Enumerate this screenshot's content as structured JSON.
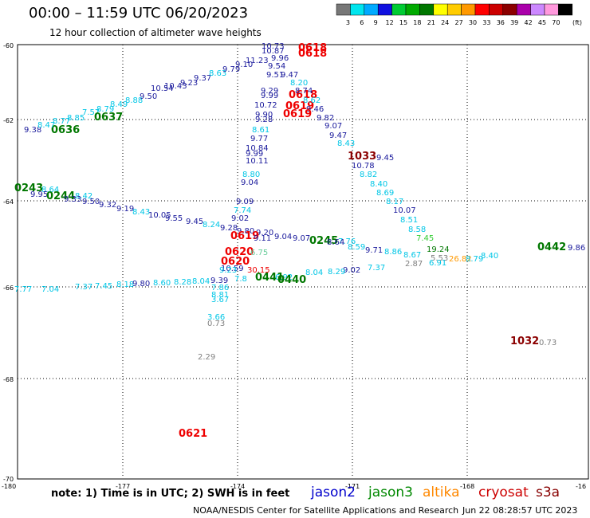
{
  "title": "00:00 – 11:59 UTC 06/20/2023",
  "subtitle": "12 hour collection of altimeter wave heights",
  "legend": {
    "labels": [
      "3",
      "6",
      "9",
      "12",
      "15",
      "18",
      "21",
      "24",
      "27",
      "30",
      "33",
      "36",
      "39",
      "42",
      "45",
      "70"
    ],
    "unit": "(ft)",
    "colors": [
      "#777777",
      "#00e5ee",
      "#00aaff",
      "#1010e0",
      "#00cc33",
      "#00aa00",
      "#007700",
      "#ffff00",
      "#ffcc00",
      "#ff9900",
      "#ff0000",
      "#cc0000",
      "#8b0000",
      "#aa00aa",
      "#cc88ff",
      "#ff99dd",
      "#000000"
    ]
  },
  "axes": {
    "lat_labels": [
      "-60",
      "-62",
      "-64",
      "-66",
      "-68",
      "-70"
    ],
    "lon_labels": [
      "-180",
      "-177",
      "-174",
      "-171",
      "-168",
      "-16"
    ]
  },
  "note": "note: 1) Time is in UTC; 2) SWH is in feet",
  "satellites": [
    {
      "name": "jason2",
      "color": "#0000cc"
    },
    {
      "name": "jason3",
      "color": "#008800"
    },
    {
      "name": "altika",
      "color": "#ff8800"
    },
    {
      "name": "cryosat",
      "color": "#cc0000"
    },
    {
      "name": "s3a",
      "color": "#880000"
    }
  ],
  "footer": "NOAA/NESDIS Center for Satellite Applications and Research",
  "footer_time": "Jun 22 08:28:57 UTC 2023",
  "colors": {
    "navy": "#1a1a9c",
    "cyan": "#00c6e6",
    "green": "#007700",
    "red": "#ee0000",
    "darkred": "#8b0000",
    "gray": "#808080",
    "orange": "#ff9900",
    "lgreen": "#33cc33",
    "teal": "#66cc99"
  },
  "labels": [
    {
      "t": "9.38",
      "c": "navy"
    },
    {
      "t": "0636",
      "c": "green",
      "b": 1
    },
    {
      "t": "8.47",
      "c": "cyan"
    },
    {
      "t": "8.77",
      "c": "cyan"
    },
    {
      "t": "8.85",
      "c": "cyan"
    },
    {
      "t": "7.57",
      "c": "cyan"
    },
    {
      "t": "0637",
      "c": "green",
      "b": 1
    },
    {
      "t": "8.79",
      "c": "cyan"
    },
    {
      "t": "8.49",
      "c": "cyan"
    },
    {
      "t": "8.88",
      "c": "cyan"
    },
    {
      "t": "9.50",
      "c": "navy"
    },
    {
      "t": "10.54",
      "c": "navy"
    },
    {
      "t": "10.43",
      "c": "navy"
    },
    {
      "t": "9.23",
      "c": "navy"
    },
    {
      "t": "9.37",
      "c": "navy"
    },
    {
      "t": "8.63",
      "c": "cyan"
    },
    {
      "t": "9.79",
      "c": "navy"
    },
    {
      "t": "9.10",
      "c": "navy"
    },
    {
      "t": "11.23",
      "c": "navy"
    },
    {
      "t": "10.73",
      "c": "navy"
    },
    {
      "t": "10.87",
      "c": "navy"
    },
    {
      "t": "0618",
      "c": "red",
      "b": 1
    },
    {
      "t": "0618",
      "c": "red",
      "b": 1
    },
    {
      "t": "9.96",
      "c": "navy"
    },
    {
      "t": "9.54",
      "c": "navy"
    },
    {
      "t": "9.51",
      "c": "navy"
    },
    {
      "t": "9.47",
      "c": "navy"
    },
    {
      "t": "8.20",
      "c": "cyan"
    },
    {
      "t": "9.29",
      "c": "navy"
    },
    {
      "t": "9.99",
      "c": "navy"
    },
    {
      "t": "0618",
      "c": "red",
      "b": 1
    },
    {
      "t": "8.74",
      "c": "navy"
    },
    {
      "t": "10.72",
      "c": "navy"
    },
    {
      "t": "0619",
      "c": "red",
      "b": 1
    },
    {
      "t": "8.62",
      "c": "cyan"
    },
    {
      "t": "9.46",
      "c": "navy"
    },
    {
      "t": "9.90",
      "c": "navy"
    },
    {
      "t": "0619",
      "c": "red",
      "b": 1
    },
    {
      "t": "9.28",
      "c": "navy"
    },
    {
      "t": "9.82",
      "c": "navy"
    },
    {
      "t": "9.07",
      "c": "navy"
    },
    {
      "t": "8.61",
      "c": "cyan"
    },
    {
      "t": "9.47",
      "c": "navy"
    },
    {
      "t": "9.77",
      "c": "navy"
    },
    {
      "t": "8.43",
      "c": "cyan"
    },
    {
      "t": "10.84",
      "c": "navy"
    },
    {
      "t": "9.99",
      "c": "navy"
    },
    {
      "t": "1033",
      "c": "darkred",
      "b": 1
    },
    {
      "t": "9.45",
      "c": "navy"
    },
    {
      "t": "10.11",
      "c": "navy"
    },
    {
      "t": "10.78",
      "c": "navy"
    },
    {
      "t": "8.82",
      "c": "cyan"
    },
    {
      "t": "8.80",
      "c": "cyan"
    },
    {
      "t": "9.04",
      "c": "navy"
    },
    {
      "t": "8.40",
      "c": "cyan"
    },
    {
      "t": "0243",
      "c": "green",
      "b": 1
    },
    {
      "t": "8.64",
      "c": "cyan"
    },
    {
      "t": "9.95",
      "c": "navy"
    },
    {
      "t": "8.69",
      "c": "cyan"
    },
    {
      "t": "0244",
      "c": "green",
      "b": 1
    },
    {
      "t": "8.42",
      "c": "cyan"
    },
    {
      "t": "9.33",
      "c": "navy"
    },
    {
      "t": "9.50",
      "c": "navy"
    },
    {
      "t": "9.32",
      "c": "navy"
    },
    {
      "t": "9.09",
      "c": "navy"
    },
    {
      "t": "8.17",
      "c": "cyan"
    },
    {
      "t": "9.19",
      "c": "navy"
    },
    {
      "t": "8.43",
      "c": "cyan"
    },
    {
      "t": "7.74",
      "c": "cyan"
    },
    {
      "t": "10.07",
      "c": "navy"
    },
    {
      "t": "10.05",
      "c": "navy"
    },
    {
      "t": "9.55",
      "c": "navy"
    },
    {
      "t": "9.45",
      "c": "navy"
    },
    {
      "t": "9.02",
      "c": "navy"
    },
    {
      "t": "8.51",
      "c": "cyan"
    },
    {
      "t": "8.24",
      "c": "cyan"
    },
    {
      "t": "9.28",
      "c": "navy"
    },
    {
      "t": "9.80",
      "c": "navy"
    },
    {
      "t": "9.20",
      "c": "navy"
    },
    {
      "t": "8.58",
      "c": "cyan"
    },
    {
      "t": "0619",
      "c": "red",
      "b": 1
    },
    {
      "t": "9.11",
      "c": "navy"
    },
    {
      "t": "9.04",
      "c": "navy"
    },
    {
      "t": "9.07",
      "c": "navy"
    },
    {
      "t": "0245",
      "c": "green",
      "b": 1
    },
    {
      "t": "7.76",
      "c": "cyan"
    },
    {
      "t": "7.45",
      "c": "lgreen"
    },
    {
      "t": "8.64",
      "c": "navy"
    },
    {
      "t": "8.59",
      "c": "cyan"
    },
    {
      "t": "9.71",
      "c": "navy"
    },
    {
      "t": "8.86",
      "c": "cyan"
    },
    {
      "t": "19.24",
      "c": "green"
    },
    {
      "t": "0442",
      "c": "green",
      "b": 1
    },
    {
      "t": "9.86",
      "c": "navy"
    },
    {
      "t": "8.67",
      "c": "cyan"
    },
    {
      "t": "8.40",
      "c": "cyan"
    },
    {
      "t": "0620",
      "c": "red",
      "b": 1
    },
    {
      "t": "6.75",
      "c": "teal"
    },
    {
      "t": "5.53",
      "c": "gray"
    },
    {
      "t": "26.82",
      "c": "orange"
    },
    {
      "t": "2.87",
      "c": "gray"
    },
    {
      "t": "6.91",
      "c": "cyan"
    },
    {
      "t": "8.79",
      "c": "cyan"
    },
    {
      "t": "0620",
      "c": "red",
      "b": 1
    },
    {
      "t": "10.59",
      "c": "navy"
    },
    {
      "t": "30.15",
      "c": "red"
    },
    {
      "t": "7.37",
      "c": "cyan"
    },
    {
      "t": "9.02",
      "c": "navy"
    },
    {
      "t": "8.29",
      "c": "cyan"
    },
    {
      "t": "8.04",
      "c": "cyan"
    },
    {
      "t": "9.23",
      "c": "cyan"
    },
    {
      "t": "7.8",
      "c": "cyan"
    },
    {
      "t": "0441",
      "c": "green",
      "b": 1
    },
    {
      "t": "6.92",
      "c": "cyan"
    },
    {
      "t": "0440",
      "c": "green",
      "b": 1
    },
    {
      "t": "7.77",
      "c": "cyan"
    },
    {
      "t": "7.04",
      "c": "cyan"
    },
    {
      "t": "7.37",
      "c": "cyan"
    },
    {
      "t": "7.45",
      "c": "cyan"
    },
    {
      "t": "8.18",
      "c": "cyan"
    },
    {
      "t": "9.80",
      "c": "navy"
    },
    {
      "t": "8.60",
      "c": "cyan"
    },
    {
      "t": "8.28",
      "c": "cyan"
    },
    {
      "t": "8.04",
      "c": "cyan"
    },
    {
      "t": "9.39",
      "c": "navy"
    },
    {
      "t": "7.86",
      "c": "cyan"
    },
    {
      "t": "8.81",
      "c": "cyan"
    },
    {
      "t": "3.67",
      "c": "cyan"
    },
    {
      "t": "3.66",
      "c": "cyan"
    },
    {
      "t": "0.73",
      "c": "gray"
    },
    {
      "t": "2.29",
      "c": "gray"
    },
    {
      "t": "1032",
      "c": "darkred",
      "b": 1
    },
    {
      "t": "0.73",
      "c": "gray"
    },
    {
      "t": "0621",
      "c": "red",
      "b": 1
    }
  ]
}
